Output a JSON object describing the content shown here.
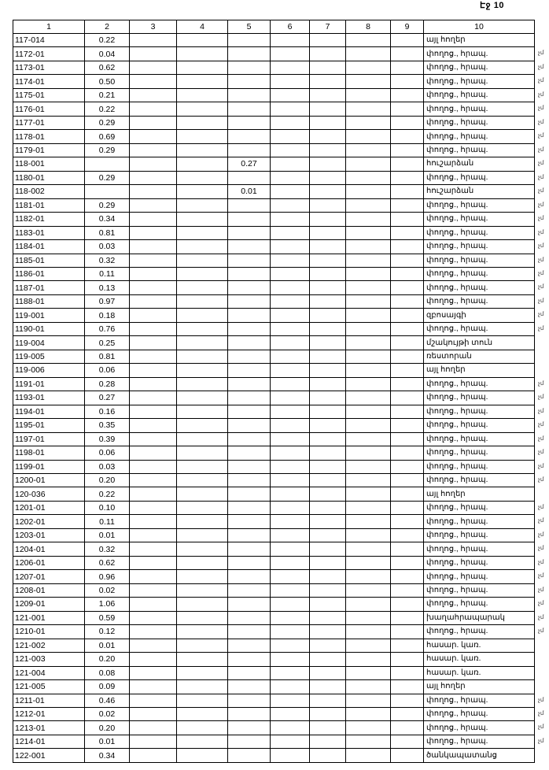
{
  "page_label": "Էջ 10",
  "columns": [
    "1",
    "2",
    "3",
    "4",
    "5",
    "6",
    "7",
    "8",
    "9",
    "10"
  ],
  "margin_mark": "չմ",
  "rows": [
    {
      "c1": "117-014",
      "c2": "0.22",
      "c5": "",
      "c10": "այլ հողեր",
      "mark": false
    },
    {
      "c1": "1172-01",
      "c2": "0.04",
      "c5": "",
      "c10": "փողոց., հրապ.",
      "mark": true
    },
    {
      "c1": "1173-01",
      "c2": "0.62",
      "c5": "",
      "c10": "փողոց., հրապ.",
      "mark": true
    },
    {
      "c1": "1174-01",
      "c2": "0.50",
      "c5": "",
      "c10": "փողոց., հրապ.",
      "mark": true
    },
    {
      "c1": "1175-01",
      "c2": "0.21",
      "c5": "",
      "c10": "փողոց., հրապ.",
      "mark": true
    },
    {
      "c1": "1176-01",
      "c2": "0.22",
      "c5": "",
      "c10": "փողոց., հրապ.",
      "mark": true
    },
    {
      "c1": "1177-01",
      "c2": "0.29",
      "c5": "",
      "c10": "փողոց., հրապ.",
      "mark": true
    },
    {
      "c1": "1178-01",
      "c2": "0.69",
      "c5": "",
      "c10": "փողոց., հրապ.",
      "mark": true
    },
    {
      "c1": "1179-01",
      "c2": "0.29",
      "c5": "",
      "c10": "փողոց., հրապ.",
      "mark": true
    },
    {
      "c1": "118-001",
      "c2": "",
      "c5": "0.27",
      "c10": "հուշարձան",
      "mark": true
    },
    {
      "c1": "1180-01",
      "c2": "0.29",
      "c5": "",
      "c10": "փողոց., հրապ.",
      "mark": true
    },
    {
      "c1": "118-002",
      "c2": "",
      "c5": "0.01",
      "c10": "հուշարձան",
      "mark": true
    },
    {
      "c1": "1181-01",
      "c2": "0.29",
      "c5": "",
      "c10": "փողոց., հրապ.",
      "mark": true
    },
    {
      "c1": "1182-01",
      "c2": "0.34",
      "c5": "",
      "c10": "փողոց., հրապ.",
      "mark": true
    },
    {
      "c1": "1183-01",
      "c2": "0.81",
      "c5": "",
      "c10": "փողոց., հրապ.",
      "mark": true
    },
    {
      "c1": "1184-01",
      "c2": "0.03",
      "c5": "",
      "c10": "փողոց., հրապ.",
      "mark": true
    },
    {
      "c1": "1185-01",
      "c2": "0.32",
      "c5": "",
      "c10": "փողոց., հրապ.",
      "mark": true
    },
    {
      "c1": "1186-01",
      "c2": "0.11",
      "c5": "",
      "c10": "փողոց., հրապ.",
      "mark": true
    },
    {
      "c1": "1187-01",
      "c2": "0.13",
      "c5": "",
      "c10": "փողոց., հրապ.",
      "mark": true
    },
    {
      "c1": "1188-01",
      "c2": "0.97",
      "c5": "",
      "c10": "փողոց., հրապ.",
      "mark": true
    },
    {
      "c1": "119-001",
      "c2": "0.18",
      "c5": "",
      "c10": "զբոսայգի",
      "mark": true
    },
    {
      "c1": "1190-01",
      "c2": "0.76",
      "c5": "",
      "c10": "փողոց., հրապ.",
      "mark": true
    },
    {
      "c1": "119-004",
      "c2": "0.25",
      "c5": "",
      "c10": "մշակույթի տուն",
      "mark": false
    },
    {
      "c1": "119-005",
      "c2": "0.81",
      "c5": "",
      "c10": "ռեստորան",
      "mark": false
    },
    {
      "c1": "119-006",
      "c2": "0.06",
      "c5": "",
      "c10": "այլ հողեր",
      "mark": false
    },
    {
      "c1": "1191-01",
      "c2": "0.28",
      "c5": "",
      "c10": "փողոց., հրապ.",
      "mark": true
    },
    {
      "c1": "1193-01",
      "c2": "0.27",
      "c5": "",
      "c10": "փողոց., հրապ.",
      "mark": true
    },
    {
      "c1": "1194-01",
      "c2": "0.16",
      "c5": "",
      "c10": "փողոց., հրապ.",
      "mark": true
    },
    {
      "c1": "1195-01",
      "c2": "0.35",
      "c5": "",
      "c10": "փողոց., հրապ.",
      "mark": true
    },
    {
      "c1": "1197-01",
      "c2": "0.39",
      "c5": "",
      "c10": "փողոց., հրապ.",
      "mark": true
    },
    {
      "c1": "1198-01",
      "c2": "0.06",
      "c5": "",
      "c10": "փողոց., հրապ.",
      "mark": true
    },
    {
      "c1": "1199-01",
      "c2": "0.03",
      "c5": "",
      "c10": "փողոց., հրապ.",
      "mark": true
    },
    {
      "c1": "1200-01",
      "c2": "0.20",
      "c5": "",
      "c10": "փողոց., հրապ.",
      "mark": true
    },
    {
      "c1": "120-036",
      "c2": "0.22",
      "c5": "",
      "c10": "այլ հողեր",
      "mark": false
    },
    {
      "c1": "1201-01",
      "c2": "0.10",
      "c5": "",
      "c10": "փողոց., հրապ.",
      "mark": true
    },
    {
      "c1": "1202-01",
      "c2": "0.11",
      "c5": "",
      "c10": "փողոց., հրապ.",
      "mark": true
    },
    {
      "c1": "1203-01",
      "c2": "0.01",
      "c5": "",
      "c10": "փողոց., հրապ.",
      "mark": true
    },
    {
      "c1": "1204-01",
      "c2": "0.32",
      "c5": "",
      "c10": "փողոց., հրապ.",
      "mark": true
    },
    {
      "c1": "1206-01",
      "c2": "0.62",
      "c5": "",
      "c10": "փողոց., հրապ.",
      "mark": true
    },
    {
      "c1": "1207-01",
      "c2": "0.96",
      "c5": "",
      "c10": "փողոց., հրապ.",
      "mark": true
    },
    {
      "c1": "1208-01",
      "c2": "0.02",
      "c5": "",
      "c10": "փողոց., հրապ.",
      "mark": true
    },
    {
      "c1": "1209-01",
      "c2": "1.06",
      "c5": "",
      "c10": "փողոց., հրապ.",
      "mark": true
    },
    {
      "c1": "121-001",
      "c2": "0.59",
      "c5": "",
      "c10": "խաղահրապարակ",
      "mark": true
    },
    {
      "c1": "1210-01",
      "c2": "0.12",
      "c5": "",
      "c10": "փողոց., հրապ.",
      "mark": true
    },
    {
      "c1": "121-002",
      "c2": "0.01",
      "c5": "",
      "c10": "հասար. կառ.",
      "mark": false
    },
    {
      "c1": "121-003",
      "c2": "0.20",
      "c5": "",
      "c10": "հասար. կառ.",
      "mark": false
    },
    {
      "c1": "121-004",
      "c2": "0.08",
      "c5": "",
      "c10": "հասար. կառ.",
      "mark": false
    },
    {
      "c1": "121-005",
      "c2": "0.09",
      "c5": "",
      "c10": "այլ հողեր",
      "mark": false
    },
    {
      "c1": "1211-01",
      "c2": "0.46",
      "c5": "",
      "c10": "փողոց., հրապ.",
      "mark": true
    },
    {
      "c1": "1212-01",
      "c2": "0.02",
      "c5": "",
      "c10": "փողոց., հրապ.",
      "mark": true
    },
    {
      "c1": "1213-01",
      "c2": "0.20",
      "c5": "",
      "c10": "փողոց., հրապ.",
      "mark": true
    },
    {
      "c1": "1214-01",
      "c2": "0.01",
      "c5": "",
      "c10": "փողոց., հրապ.",
      "mark": true
    },
    {
      "c1": "122-001",
      "c2": "0.34",
      "c5": "",
      "c10": "ծանկապատանց",
      "mark": false
    }
  ]
}
